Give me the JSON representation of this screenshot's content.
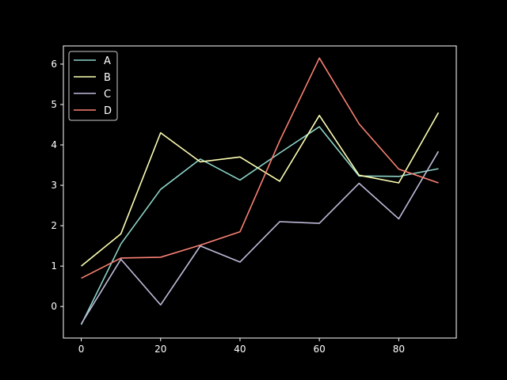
{
  "chart_data": {
    "type": "line",
    "title": "",
    "xlabel": "",
    "ylabel": "",
    "x": [
      0,
      10,
      20,
      30,
      40,
      50,
      60,
      70,
      80,
      90
    ],
    "xlim": [
      -4.5,
      94.5
    ],
    "ylim": [
      -0.78,
      6.45
    ],
    "xticks": [
      0,
      20,
      40,
      60,
      80
    ],
    "yticks": [
      0,
      1,
      2,
      3,
      4,
      5,
      6
    ],
    "grid": false,
    "legend_position": "top-left",
    "background": "#000000",
    "axis_color": "#ffffff",
    "series": [
      {
        "name": "A",
        "color": "#8dd3c7",
        "values": [
          -0.45,
          1.55,
          2.9,
          3.65,
          3.13,
          3.8,
          4.45,
          3.23,
          3.22,
          3.41
        ]
      },
      {
        "name": "B",
        "color": "#feffb3",
        "values": [
          1.0,
          1.8,
          4.3,
          3.58,
          3.7,
          3.1,
          4.73,
          3.25,
          3.06,
          4.8
        ]
      },
      {
        "name": "C",
        "color": "#bfbbd9",
        "values": [
          -0.43,
          1.17,
          0.04,
          1.5,
          1.1,
          2.1,
          2.06,
          3.05,
          2.17,
          3.84
        ]
      },
      {
        "name": "D",
        "color": "#fa8174",
        "values": [
          0.7,
          1.2,
          1.22,
          1.52,
          1.85,
          4.1,
          6.15,
          4.52,
          3.4,
          3.06
        ]
      }
    ]
  }
}
